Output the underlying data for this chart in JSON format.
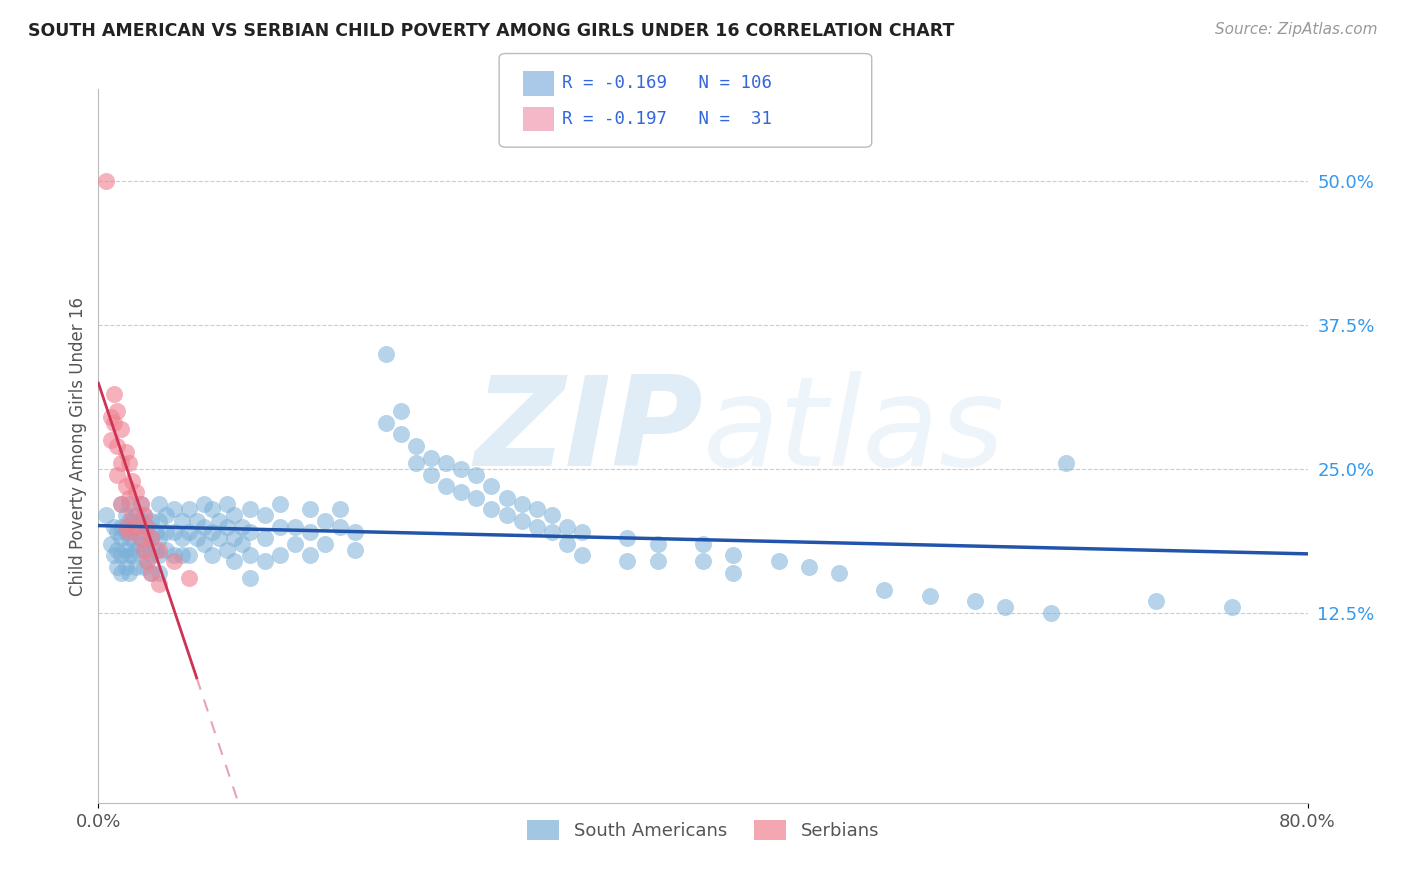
{
  "title": "SOUTH AMERICAN VS SERBIAN CHILD POVERTY AMONG GIRLS UNDER 16 CORRELATION CHART",
  "source": "Source: ZipAtlas.com",
  "ylabel": "Child Poverty Among Girls Under 16",
  "ytick_labels": [
    "50.0%",
    "37.5%",
    "25.0%",
    "12.5%"
  ],
  "ytick_values": [
    0.5,
    0.375,
    0.25,
    0.125
  ],
  "xlim": [
    0.0,
    0.8
  ],
  "ylim": [
    -0.04,
    0.58
  ],
  "south_american_color": "#7ab0d8",
  "serbian_color": "#f08090",
  "trend_sa_color": "#2255aa",
  "trend_serb_color": "#cc3355",
  "watermark_color": "#d6eaf8",
  "sa_points": [
    [
      0.005,
      0.21
    ],
    [
      0.008,
      0.185
    ],
    [
      0.01,
      0.2
    ],
    [
      0.01,
      0.175
    ],
    [
      0.012,
      0.195
    ],
    [
      0.012,
      0.18
    ],
    [
      0.012,
      0.165
    ],
    [
      0.015,
      0.22
    ],
    [
      0.015,
      0.2
    ],
    [
      0.015,
      0.19
    ],
    [
      0.015,
      0.175
    ],
    [
      0.015,
      0.16
    ],
    [
      0.018,
      0.21
    ],
    [
      0.018,
      0.195
    ],
    [
      0.018,
      0.18
    ],
    [
      0.018,
      0.165
    ],
    [
      0.02,
      0.22
    ],
    [
      0.02,
      0.205
    ],
    [
      0.02,
      0.19
    ],
    [
      0.02,
      0.175
    ],
    [
      0.02,
      0.16
    ],
    [
      0.022,
      0.205
    ],
    [
      0.022,
      0.19
    ],
    [
      0.022,
      0.175
    ],
    [
      0.025,
      0.21
    ],
    [
      0.025,
      0.195
    ],
    [
      0.025,
      0.18
    ],
    [
      0.025,
      0.165
    ],
    [
      0.028,
      0.22
    ],
    [
      0.028,
      0.205
    ],
    [
      0.028,
      0.185
    ],
    [
      0.03,
      0.21
    ],
    [
      0.03,
      0.195
    ],
    [
      0.03,
      0.18
    ],
    [
      0.03,
      0.165
    ],
    [
      0.032,
      0.2
    ],
    [
      0.032,
      0.185
    ],
    [
      0.032,
      0.17
    ],
    [
      0.035,
      0.205
    ],
    [
      0.035,
      0.19
    ],
    [
      0.035,
      0.175
    ],
    [
      0.035,
      0.16
    ],
    [
      0.038,
      0.195
    ],
    [
      0.038,
      0.18
    ],
    [
      0.04,
      0.22
    ],
    [
      0.04,
      0.205
    ],
    [
      0.04,
      0.19
    ],
    [
      0.04,
      0.175
    ],
    [
      0.04,
      0.16
    ],
    [
      0.045,
      0.21
    ],
    [
      0.045,
      0.195
    ],
    [
      0.045,
      0.18
    ],
    [
      0.05,
      0.215
    ],
    [
      0.05,
      0.195
    ],
    [
      0.05,
      0.175
    ],
    [
      0.055,
      0.205
    ],
    [
      0.055,
      0.19
    ],
    [
      0.055,
      0.175
    ],
    [
      0.06,
      0.215
    ],
    [
      0.06,
      0.195
    ],
    [
      0.06,
      0.175
    ],
    [
      0.065,
      0.205
    ],
    [
      0.065,
      0.19
    ],
    [
      0.07,
      0.22
    ],
    [
      0.07,
      0.2
    ],
    [
      0.07,
      0.185
    ],
    [
      0.075,
      0.215
    ],
    [
      0.075,
      0.195
    ],
    [
      0.075,
      0.175
    ],
    [
      0.08,
      0.205
    ],
    [
      0.08,
      0.19
    ],
    [
      0.085,
      0.22
    ],
    [
      0.085,
      0.2
    ],
    [
      0.085,
      0.18
    ],
    [
      0.09,
      0.21
    ],
    [
      0.09,
      0.19
    ],
    [
      0.09,
      0.17
    ],
    [
      0.095,
      0.2
    ],
    [
      0.095,
      0.185
    ],
    [
      0.1,
      0.215
    ],
    [
      0.1,
      0.195
    ],
    [
      0.1,
      0.175
    ],
    [
      0.1,
      0.155
    ],
    [
      0.11,
      0.21
    ],
    [
      0.11,
      0.19
    ],
    [
      0.11,
      0.17
    ],
    [
      0.12,
      0.22
    ],
    [
      0.12,
      0.2
    ],
    [
      0.12,
      0.175
    ],
    [
      0.13,
      0.2
    ],
    [
      0.13,
      0.185
    ],
    [
      0.14,
      0.215
    ],
    [
      0.14,
      0.195
    ],
    [
      0.14,
      0.175
    ],
    [
      0.15,
      0.205
    ],
    [
      0.15,
      0.185
    ],
    [
      0.16,
      0.215
    ],
    [
      0.16,
      0.2
    ],
    [
      0.17,
      0.195
    ],
    [
      0.17,
      0.18
    ],
    [
      0.19,
      0.35
    ],
    [
      0.19,
      0.29
    ],
    [
      0.2,
      0.3
    ],
    [
      0.2,
      0.28
    ],
    [
      0.21,
      0.27
    ],
    [
      0.21,
      0.255
    ],
    [
      0.22,
      0.26
    ],
    [
      0.22,
      0.245
    ],
    [
      0.23,
      0.255
    ],
    [
      0.23,
      0.235
    ],
    [
      0.24,
      0.25
    ],
    [
      0.24,
      0.23
    ],
    [
      0.25,
      0.245
    ],
    [
      0.25,
      0.225
    ],
    [
      0.26,
      0.235
    ],
    [
      0.26,
      0.215
    ],
    [
      0.27,
      0.225
    ],
    [
      0.27,
      0.21
    ],
    [
      0.28,
      0.22
    ],
    [
      0.28,
      0.205
    ],
    [
      0.29,
      0.215
    ],
    [
      0.29,
      0.2
    ],
    [
      0.3,
      0.21
    ],
    [
      0.3,
      0.195
    ],
    [
      0.31,
      0.2
    ],
    [
      0.31,
      0.185
    ],
    [
      0.32,
      0.195
    ],
    [
      0.32,
      0.175
    ],
    [
      0.35,
      0.19
    ],
    [
      0.35,
      0.17
    ],
    [
      0.37,
      0.185
    ],
    [
      0.37,
      0.17
    ],
    [
      0.4,
      0.185
    ],
    [
      0.4,
      0.17
    ],
    [
      0.42,
      0.175
    ],
    [
      0.42,
      0.16
    ],
    [
      0.45,
      0.17
    ],
    [
      0.47,
      0.165
    ],
    [
      0.49,
      0.16
    ],
    [
      0.52,
      0.145
    ],
    [
      0.55,
      0.14
    ],
    [
      0.58,
      0.135
    ],
    [
      0.6,
      0.13
    ],
    [
      0.63,
      0.125
    ],
    [
      0.64,
      0.255
    ],
    [
      0.7,
      0.135
    ],
    [
      0.75,
      0.13
    ]
  ],
  "serb_points": [
    [
      0.005,
      0.5
    ],
    [
      0.008,
      0.295
    ],
    [
      0.008,
      0.275
    ],
    [
      0.01,
      0.315
    ],
    [
      0.01,
      0.29
    ],
    [
      0.012,
      0.3
    ],
    [
      0.012,
      0.27
    ],
    [
      0.012,
      0.245
    ],
    [
      0.015,
      0.285
    ],
    [
      0.015,
      0.255
    ],
    [
      0.015,
      0.22
    ],
    [
      0.018,
      0.265
    ],
    [
      0.018,
      0.235
    ],
    [
      0.018,
      0.2
    ],
    [
      0.02,
      0.255
    ],
    [
      0.02,
      0.225
    ],
    [
      0.02,
      0.195
    ],
    [
      0.022,
      0.24
    ],
    [
      0.022,
      0.21
    ],
    [
      0.025,
      0.23
    ],
    [
      0.025,
      0.2
    ],
    [
      0.028,
      0.22
    ],
    [
      0.028,
      0.19
    ],
    [
      0.03,
      0.21
    ],
    [
      0.03,
      0.18
    ],
    [
      0.032,
      0.2
    ],
    [
      0.032,
      0.17
    ],
    [
      0.035,
      0.19
    ],
    [
      0.035,
      0.16
    ],
    [
      0.04,
      0.18
    ],
    [
      0.04,
      0.15
    ],
    [
      0.05,
      0.17
    ],
    [
      0.06,
      0.155
    ]
  ],
  "legend_sa_color": "#aac8e8",
  "legend_serb_color": "#f4b8c8",
  "legend_text_color": "#3366dd"
}
